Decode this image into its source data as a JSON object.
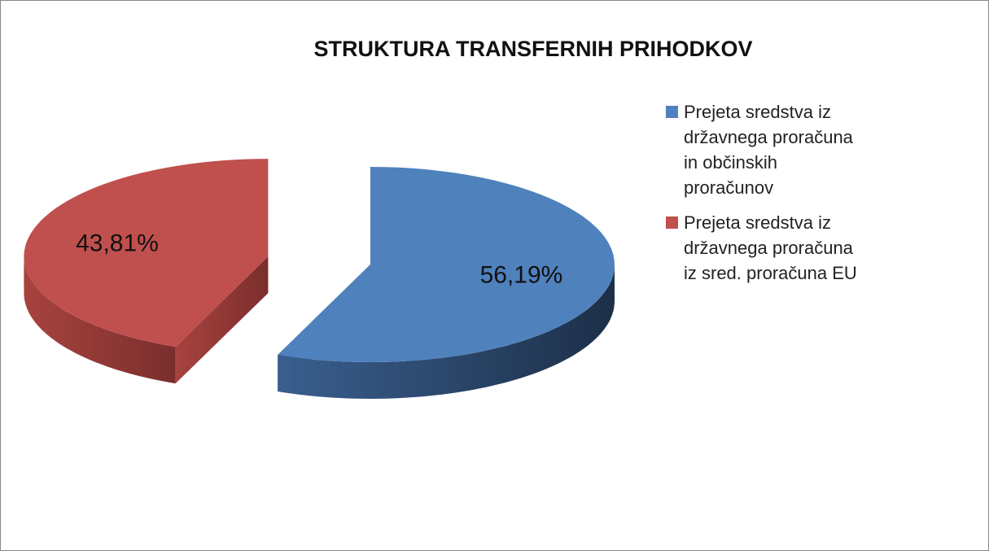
{
  "chart_data": {
    "type": "pie3d",
    "title": "STRUKTURA TRANSFERNIH PRIHODKOV",
    "categories": [
      "Prejeta sredstva iz državnega proračuna in občinskih proračunov",
      "Prejeta sredstva iz državnega proračuna  iz sred. proračuna EU"
    ],
    "values": [
      56.19,
      43.81
    ],
    "value_labels": [
      "56,19%",
      "43,81%"
    ],
    "colors": [
      "#4f81bd",
      "#c0504d"
    ],
    "legend": "right"
  }
}
